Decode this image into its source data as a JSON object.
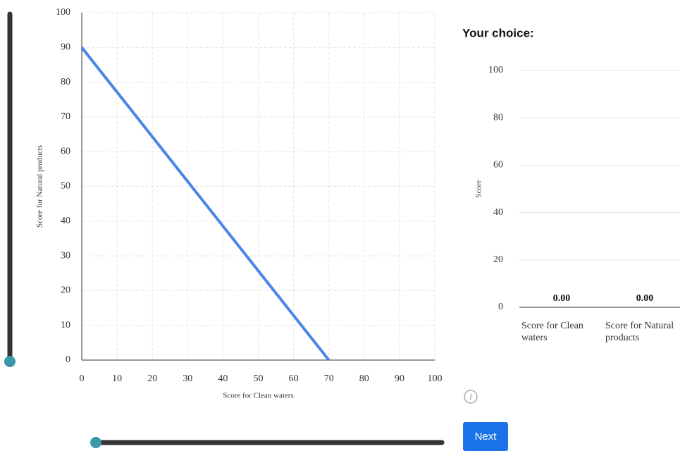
{
  "chart_data": [
    {
      "type": "line",
      "x_label": "Score for Clean waters",
      "y_label": "Score for Natural products",
      "x": [
        0,
        70
      ],
      "values": [
        90,
        0
      ],
      "color": "#4a86e8",
      "xlim": [
        0,
        100
      ],
      "ylim": [
        0,
        100
      ],
      "xticks": [
        0,
        10,
        20,
        30,
        40,
        50,
        60,
        70,
        80,
        90,
        100
      ],
      "yticks": [
        0,
        10,
        20,
        30,
        40,
        50,
        60,
        70,
        80,
        90,
        100
      ],
      "grid": true
    },
    {
      "type": "bar",
      "title": "Your choice:",
      "y_label": "Score",
      "categories": [
        "Score for Clean waters",
        "Score for Natural products"
      ],
      "values": [
        0,
        0
      ],
      "value_labels": [
        "0.00",
        "0.00"
      ],
      "color": "#4a86e8",
      "ylim": [
        0,
        100
      ],
      "yticks": [
        0,
        20,
        40,
        60,
        80,
        100
      ],
      "grid": true
    }
  ],
  "info_icon": "i",
  "next_button": "Next"
}
